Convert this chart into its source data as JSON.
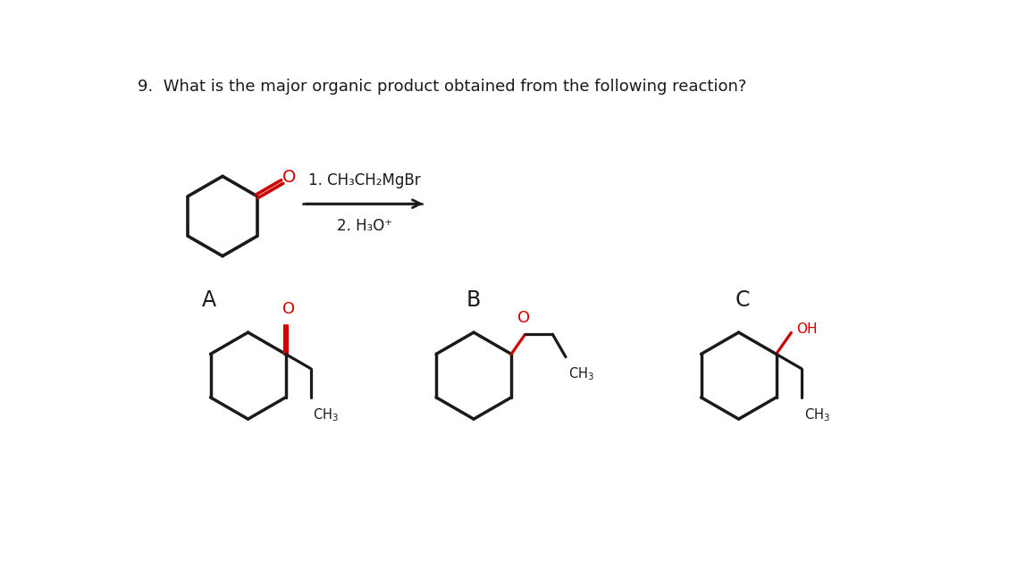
{
  "title": "9.  What is the major organic product obtained from the following reaction?",
  "title_fontsize": 13,
  "reaction_line1": "1. CH₃CH₂MgBr",
  "reaction_line2": "2. H₃O⁺",
  "label_A": "A",
  "label_B": "B",
  "label_C": "C",
  "black": "#1a1a1a",
  "red": "#cc0000",
  "bg": "#ffffff",
  "lw": 2.3,
  "lw_thin": 1.8
}
